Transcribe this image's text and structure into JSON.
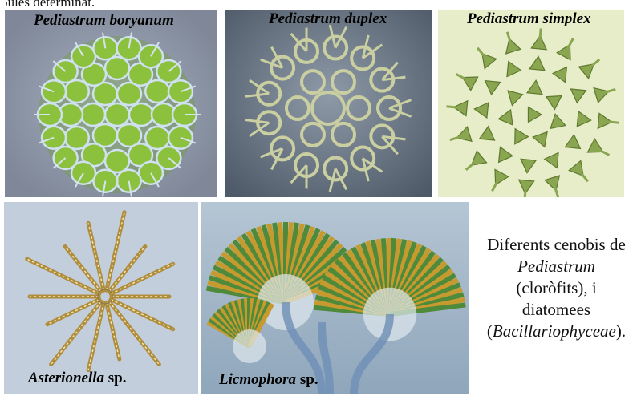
{
  "header_fragment": "¬ules determinat.",
  "panels": {
    "boryanum": {
      "label": "Pediastrum boryanum"
    },
    "duplex": {
      "label": "Pediastrum duplex"
    },
    "simplex": {
      "label": "Pediastrum simplex"
    },
    "asterionella": {
      "label_italic": "Asterionella",
      "label_plain": " sp."
    },
    "licmophora": {
      "label_italic": "Licmophora",
      "label_plain": " sp."
    }
  },
  "caption": {
    "line1": "Diferents cenobis de",
    "line2": "Pediastrum",
    "line3": "(cloròfits), i",
    "line4": "diatomees",
    "line5_open": "(",
    "line5_italic": "Bacillariophyceae",
    "line5_close": ")."
  },
  "colors": {
    "boryanum_bg": "#8f97a8",
    "duplex_bg": "#5f6b7a",
    "simplex_bg": "#e9eecf",
    "asterionella_bg": "#c3cfdd",
    "licmophora_bg": "#9ab0c4",
    "algae_green": "#7fb23a",
    "diatom_gold": "#b98f2a"
  }
}
